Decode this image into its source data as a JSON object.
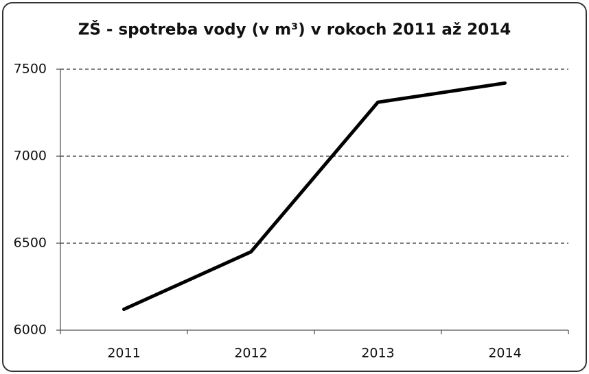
{
  "chart_data": {
    "type": "line",
    "title": "ZŠ - spotreba vody (v m³) v rokoch 2011 až 2014",
    "categories": [
      "2011",
      "2012",
      "2013",
      "2014"
    ],
    "values": [
      6120,
      6450,
      7310,
      7420
    ],
    "color": "#000000",
    "ylim": [
      6000,
      7500
    ],
    "yticks": [
      6000,
      6500,
      7000,
      7500
    ],
    "grid": true
  }
}
